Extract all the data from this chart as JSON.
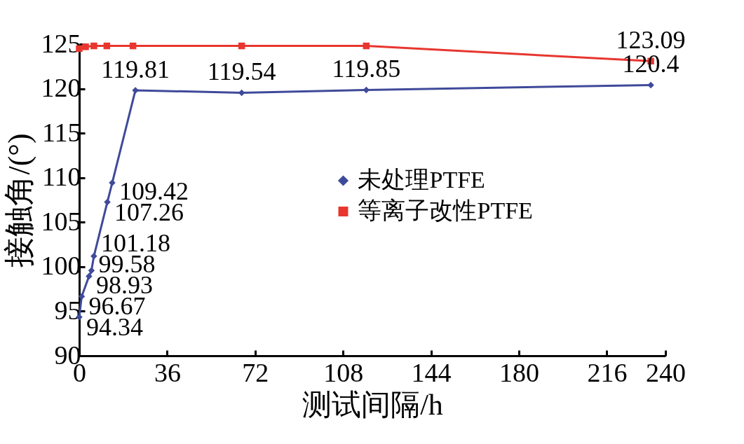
{
  "chart_data": {
    "type": "line",
    "xlabel": "测试间隔/h",
    "ylabel": "接触角/(°)",
    "xlim": [
      0,
      240
    ],
    "xticks": [
      0,
      36,
      72,
      108,
      144,
      180,
      216,
      240
    ],
    "ylim": [
      90,
      125
    ],
    "yticks": [
      90,
      95,
      100,
      105,
      110,
      115,
      120,
      125
    ],
    "grid": false,
    "legend": "right",
    "series": [
      {
        "name": "未处理PTFE",
        "color": "#3f4a9a",
        "marker": "diamond",
        "x": [
          0,
          1,
          4,
          5,
          6,
          11.5,
          13.5,
          23,
          66.5,
          117.5,
          234
        ],
        "values": [
          94.34,
          96.67,
          98.93,
          99.58,
          101.18,
          107.26,
          109.42,
          119.81,
          119.54,
          119.85,
          120.4
        ],
        "value_labels": [
          "94.34",
          "96.67",
          "98.93",
          "99.58",
          "101.18",
          "107.26",
          "109.42",
          "119.81",
          "119.54",
          "119.85",
          "120.4"
        ]
      },
      {
        "name": "等离子改性PTFE",
        "color": "#e8362f",
        "marker": "square",
        "x": [
          0,
          2.6,
          6,
          11.3,
          22,
          66.5,
          117.5,
          234
        ],
        "values": [
          124.5,
          124.7,
          124.8,
          124.8,
          124.8,
          124.8,
          124.8,
          123.09
        ],
        "value_labels": [
          null,
          null,
          null,
          null,
          null,
          null,
          null,
          "123.09"
        ]
      }
    ]
  }
}
